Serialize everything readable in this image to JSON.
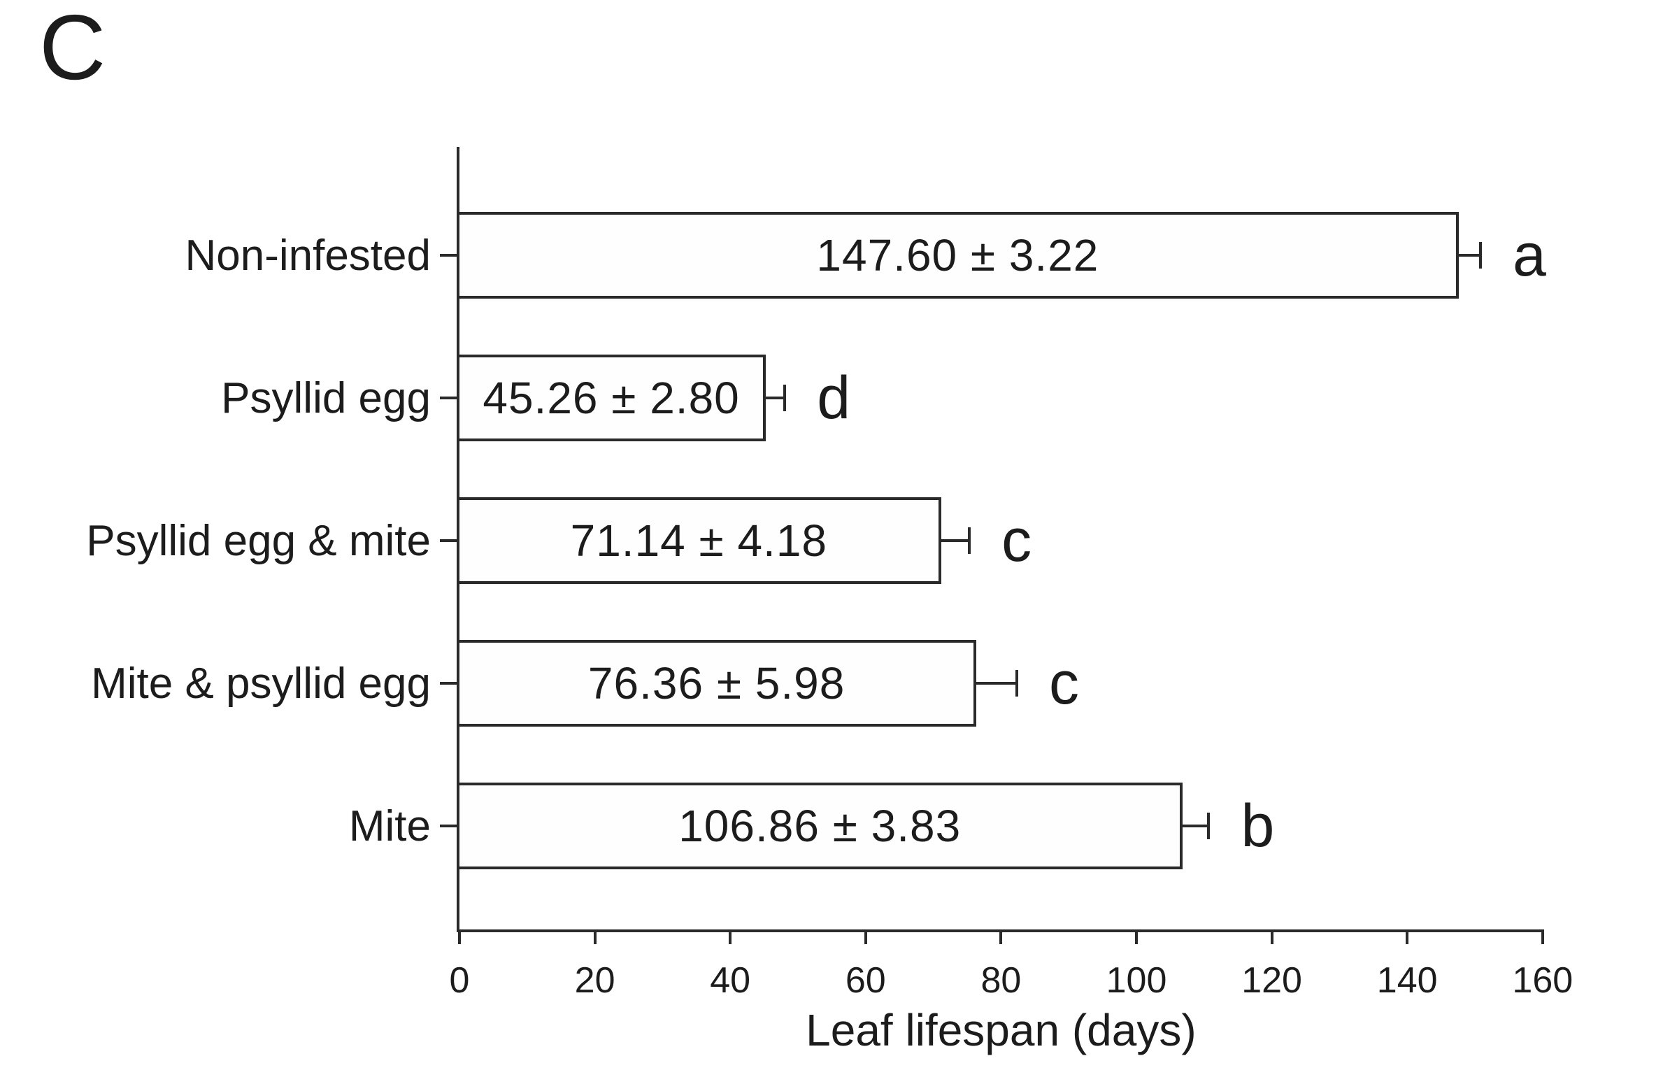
{
  "panel_label": "C",
  "colors": {
    "background": "#ffffff",
    "ink": "#1c1c1c",
    "line": "#2a2a2a",
    "bar_fill": "#fefefe"
  },
  "chart_data": {
    "type": "bar",
    "orientation": "horizontal",
    "title": "",
    "xlabel": "Leaf lifespan (days)",
    "ylabel": "",
    "xlim": [
      0,
      160
    ],
    "xticks": [
      0,
      20,
      40,
      60,
      80,
      100,
      120,
      140,
      160
    ],
    "xtick_labels": [
      "0",
      "20",
      "40",
      "60",
      "80",
      "100",
      "120",
      "140",
      "160"
    ],
    "grid": false,
    "legend": null,
    "categories": [
      "Non-infested",
      "Psyllid egg",
      "Psyllid egg & mite",
      "Mite & psyllid egg",
      "Mite"
    ],
    "values": [
      147.6,
      45.26,
      71.14,
      76.36,
      106.86
    ],
    "errors": [
      3.22,
      2.8,
      4.18,
      5.98,
      3.83
    ],
    "value_texts": [
      "147.60",
      "45.26",
      "71.14",
      "76.36",
      "106.86"
    ],
    "error_texts": [
      "3.22",
      "2.80",
      "4.18",
      "5.98",
      "3.83"
    ],
    "plus_minus_symbol": "±",
    "sig_letters": [
      "a",
      "d",
      "c",
      "c",
      "b"
    ],
    "bar_annotations": [
      "147.60 ± 3.22",
      "45.26 ± 2.80",
      "71.14 ± 4.18",
      "76.36 ± 5.98",
      "106.86 ± 3.83"
    ]
  }
}
